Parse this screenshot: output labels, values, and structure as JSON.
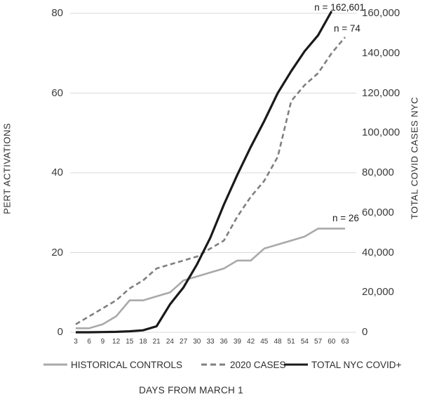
{
  "chart_data": {
    "type": "line",
    "title": "",
    "xlabel": "DAYS FROM MARCH 1",
    "grid": "horizontal",
    "legend_position": "bottom",
    "categories": [
      3,
      6,
      9,
      12,
      15,
      18,
      21,
      24,
      27,
      30,
      33,
      36,
      39,
      42,
      45,
      48,
      51,
      54,
      57,
      60,
      63
    ],
    "left_axis": {
      "title": "PERT ACTIVATIONS",
      "range": [
        0,
        80
      ],
      "ticks": [
        0,
        20,
        40,
        60,
        80
      ],
      "tick_labels": [
        "0",
        "20",
        "40",
        "60",
        "80"
      ]
    },
    "right_axis": {
      "title": "TOTAL COVID CASES NYC",
      "range": [
        0,
        160000
      ],
      "ticks": [
        0,
        20000,
        40000,
        60000,
        80000,
        100000,
        120000,
        140000,
        160000
      ],
      "tick_labels": [
        "0",
        "20,000",
        "40,000",
        "60,000",
        "80,000",
        "100,000",
        "120,000",
        "140,000",
        "160,000"
      ]
    },
    "series": [
      {
        "name": "HISTORICAL CONTROLS",
        "axis": "left",
        "line_style": "solid",
        "color": "#a9a9a9",
        "final_n": 26,
        "values": [
          1,
          1,
          2,
          4,
          8,
          8,
          9,
          10,
          13,
          14,
          15,
          16,
          18,
          18,
          21,
          22,
          23,
          24,
          26,
          26,
          26
        ]
      },
      {
        "name": "2020 CASES",
        "axis": "left",
        "line_style": "dashed",
        "color": "#7f7f7f",
        "final_n": 74,
        "values": [
          2,
          4,
          6,
          8,
          11,
          13,
          16,
          17,
          18,
          19,
          21,
          23,
          29,
          34,
          38,
          44,
          58,
          62,
          65,
          70,
          74
        ]
      },
      {
        "name": "TOTAL NYC COVID+",
        "axis": "right",
        "line_style": "solid",
        "color": "#1a1a1a",
        "final_n": 162601,
        "values": [
          0,
          0,
          100,
          200,
          500,
          1000,
          3000,
          14000,
          22500,
          34000,
          47500,
          64000,
          79000,
          93000,
          106000,
          120000,
          131000,
          141000,
          149000,
          162601,
          null
        ]
      }
    ],
    "annotations": [
      {
        "text": "n = 162,601",
        "series": "TOTAL NYC COVID+"
      },
      {
        "text": "n = 74",
        "series": "2020 CASES"
      },
      {
        "text": "n = 26",
        "series": "HISTORICAL CONTROLS"
      }
    ],
    "gridline_color": "#d9d9d9"
  }
}
